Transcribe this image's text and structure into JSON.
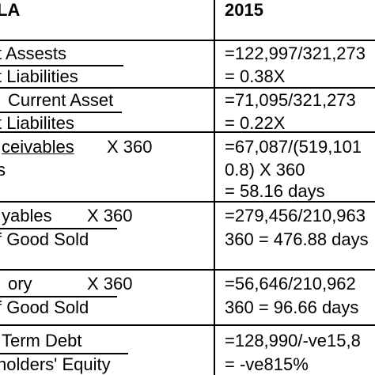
{
  "header": {
    "left": "LA",
    "right": "2015"
  },
  "rows": [
    {
      "left": [
        "t Assests",
        "t Liabilities"
      ],
      "right": [
        "=122,997/321,273",
        "= 0.38X"
      ]
    },
    {
      "left": [
        "Current Asset",
        "t Liabilites"
      ],
      "right": [
        "=71,095/321,273",
        "= 0.22X"
      ]
    },
    {
      "left": [
        "ceivables",
        "X 360",
        "s"
      ],
      "right": [
        "=67,087/(519,101",
        "0.8) X 360",
        "= 58.16 days"
      ]
    },
    {
      "left": [
        "yables",
        "X 360",
        "f Good Sold"
      ],
      "right": [
        "=279,456/210,963",
        "360 = 476.88 days"
      ]
    },
    {
      "left": [
        "ory",
        "X 360",
        "f Good Sold"
      ],
      "right": [
        "=56,646/210,962",
        "360 = 96.66 days"
      ]
    },
    {
      "left": [
        "Term Debt",
        "holders' Equity"
      ],
      "right": [
        "=128,990/-ve15,8",
        "= -ve815%"
      ]
    }
  ]
}
